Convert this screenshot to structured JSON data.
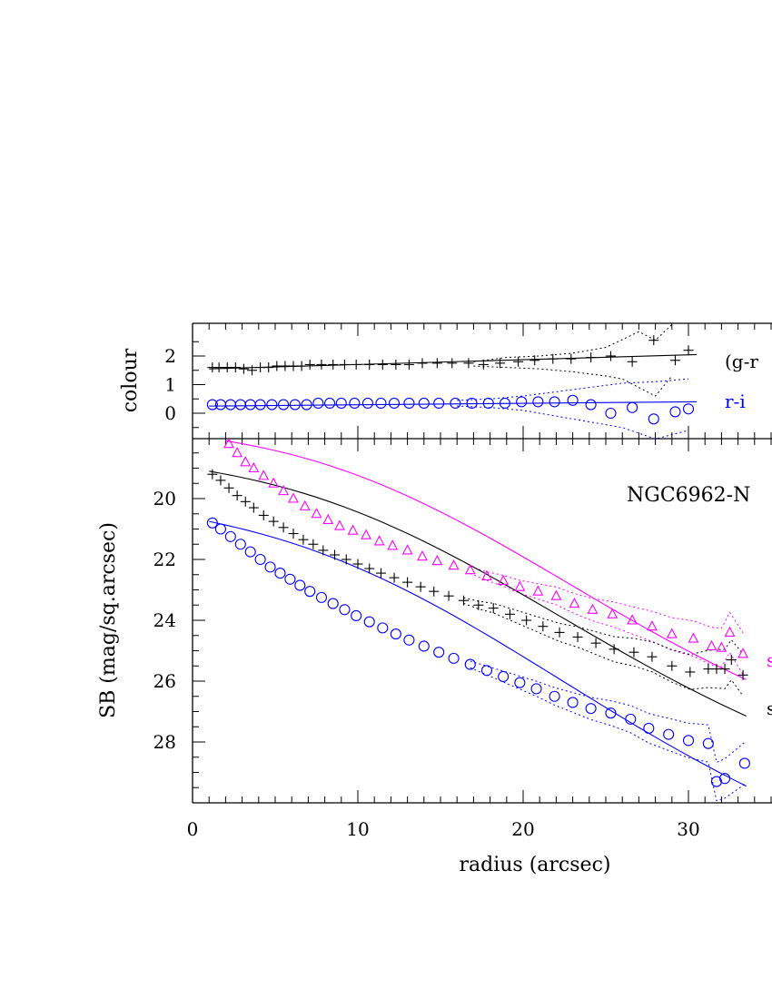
{
  "colors": {
    "black": "#000000",
    "blue": "#0000ff",
    "magenta": "#ff00ff"
  },
  "chart_data": [
    {
      "type": "scatter",
      "panel": "colour",
      "ylabel": "colour",
      "xlim": [
        0,
        35
      ],
      "ylim": [
        -0.8,
        3.0
      ],
      "y_ticks": [
        0,
        1,
        2
      ],
      "x_ticks": [
        0,
        10,
        20,
        30
      ],
      "labels": [
        "(g-r",
        "r-i"
      ],
      "series": [
        {
          "name": "(g-r",
          "color": "#000000",
          "marker": "plus",
          "x": [
            1.2,
            1.6,
            2.1,
            2.6,
            3.1,
            3.6,
            4.1,
            4.6,
            5.1,
            5.6,
            6.1,
            6.6,
            7.1,
            7.8,
            8.5,
            9.2,
            9.9,
            10.7,
            11.5,
            12.3,
            13.1,
            13.9,
            14.8,
            15.7,
            16.7,
            17.6,
            18.6,
            19.7,
            20.7,
            21.8,
            22.9,
            24.1,
            25.3,
            26.6,
            27.9,
            29.2,
            30.0
          ],
          "y": [
            1.6,
            1.6,
            1.6,
            1.6,
            1.55,
            1.5,
            1.6,
            1.6,
            1.65,
            1.65,
            1.65,
            1.65,
            1.7,
            1.7,
            1.7,
            1.7,
            1.7,
            1.7,
            1.7,
            1.7,
            1.7,
            1.75,
            1.75,
            1.75,
            1.75,
            1.7,
            1.75,
            1.8,
            1.85,
            1.9,
            1.9,
            1.95,
            2.0,
            1.8,
            2.55,
            1.85,
            2.2
          ],
          "fit_x": [
            1.0,
            30.5
          ],
          "fit_y": [
            1.55,
            2.05
          ],
          "err_upper": [
            [
              17,
              1.8
            ],
            [
              19,
              1.95
            ],
            [
              21,
              2.0
            ],
            [
              23,
              2.1
            ],
            [
              25,
              2.3
            ],
            [
              27,
              2.85
            ],
            [
              28,
              2.55
            ],
            [
              29,
              3.1
            ]
          ],
          "err_lower": [
            [
              17,
              1.65
            ],
            [
              19,
              1.6
            ],
            [
              21,
              1.55
            ],
            [
              23,
              1.45
            ],
            [
              25,
              1.3
            ],
            [
              26,
              1.2
            ],
            [
              28,
              0.6
            ],
            [
              29,
              1.3
            ]
          ]
        },
        {
          "name": "r-i",
          "color": "#0000ff",
          "marker": "circle",
          "x": [
            1.2,
            1.7,
            2.3,
            2.9,
            3.5,
            4.1,
            4.8,
            5.5,
            6.2,
            6.9,
            7.6,
            8.3,
            9.0,
            9.8,
            10.6,
            11.4,
            12.2,
            13.1,
            14.0,
            14.9,
            15.9,
            16.9,
            17.9,
            18.9,
            19.9,
            20.9,
            21.9,
            23.0,
            24.1,
            25.3,
            26.6,
            27.9,
            29.2,
            30.0
          ],
          "y": [
            0.3,
            0.3,
            0.3,
            0.3,
            0.3,
            0.3,
            0.3,
            0.3,
            0.3,
            0.3,
            0.35,
            0.35,
            0.35,
            0.35,
            0.35,
            0.35,
            0.35,
            0.35,
            0.35,
            0.35,
            0.35,
            0.35,
            0.35,
            0.35,
            0.4,
            0.4,
            0.4,
            0.45,
            0.3,
            0.0,
            0.2,
            -0.2,
            0.05,
            0.15
          ],
          "fit_x": [
            1.0,
            30.5
          ],
          "fit_y": [
            0.25,
            0.4
          ],
          "err_upper": [
            [
              16,
              0.45
            ],
            [
              18,
              0.5
            ],
            [
              20,
              0.6
            ],
            [
              22,
              0.75
            ],
            [
              24,
              0.9
            ],
            [
              26,
              1.05
            ],
            [
              28,
              1.1
            ],
            [
              30,
              1.2
            ]
          ],
          "err_lower": [
            [
              16,
              0.25
            ],
            [
              18,
              0.2
            ],
            [
              20,
              0.1
            ],
            [
              22,
              -0.1
            ],
            [
              24,
              -0.3
            ],
            [
              26,
              -0.5
            ],
            [
              28,
              -0.9
            ],
            [
              30,
              -0.6
            ]
          ]
        }
      ]
    },
    {
      "type": "scatter",
      "panel": "surface-brightness",
      "title": "NGC6962-N",
      "xlabel": "radius (arcsec)",
      "ylabel": "SB (mag/sq.arcsec)",
      "xlim": [
        0,
        35
      ],
      "ylim": [
        30.0,
        18.0
      ],
      "y_ticks": [
        20,
        22,
        24,
        26,
        28
      ],
      "x_ticks": [
        0,
        10,
        20,
        30
      ],
      "legend_fragments": [
        "s",
        "s"
      ],
      "series": [
        {
          "color": "#ff00ff",
          "marker": "triangle",
          "x": [
            2.2,
            2.7,
            3.2,
            3.7,
            4.3,
            4.9,
            5.5,
            6.1,
            6.8,
            7.5,
            8.2,
            8.9,
            9.7,
            10.5,
            11.3,
            12.1,
            13.0,
            13.9,
            14.8,
            15.8,
            16.8,
            17.8,
            18.8,
            19.8,
            20.9,
            22.0,
            23.1,
            24.2,
            25.4,
            26.6,
            27.8,
            29.0,
            30.3,
            31.4,
            32.0,
            32.5,
            33.3
          ],
          "y": [
            18.2,
            18.5,
            18.8,
            19.0,
            19.25,
            19.5,
            19.75,
            20.0,
            20.25,
            20.5,
            20.7,
            20.9,
            21.05,
            21.2,
            21.4,
            21.55,
            21.7,
            21.9,
            22.05,
            22.2,
            22.35,
            22.55,
            22.7,
            22.9,
            23.05,
            23.2,
            23.45,
            23.65,
            23.8,
            24.0,
            24.2,
            24.45,
            24.6,
            24.85,
            24.9,
            24.4,
            25.1
          ],
          "fit_x": [
            2.0,
            33.5
          ],
          "fit_y": [
            18.1,
            25.95
          ]
        },
        {
          "color": "#000000",
          "marker": "plus",
          "x": [
            1.2,
            1.7,
            2.2,
            2.7,
            3.2,
            3.7,
            4.3,
            4.9,
            5.5,
            6.1,
            6.7,
            7.3,
            7.9,
            8.6,
            9.3,
            10.0,
            10.7,
            11.4,
            12.2,
            13.0,
            13.8,
            14.6,
            15.5,
            16.4,
            17.3,
            18.2,
            19.2,
            20.2,
            21.2,
            22.2,
            23.3,
            24.4,
            25.5,
            26.7,
            27.8,
            29.0,
            30.1,
            31.2,
            31.7,
            32.2,
            32.6,
            33.3
          ],
          "y": [
            19.2,
            19.4,
            19.65,
            19.9,
            20.1,
            20.3,
            20.55,
            20.75,
            20.95,
            21.15,
            21.35,
            21.5,
            21.7,
            21.85,
            22.0,
            22.15,
            22.3,
            22.45,
            22.6,
            22.75,
            22.9,
            23.05,
            23.2,
            23.35,
            23.5,
            23.6,
            23.8,
            24.0,
            24.2,
            24.4,
            24.55,
            24.75,
            24.95,
            25.05,
            25.2,
            25.5,
            25.7,
            25.6,
            25.6,
            25.6,
            25.3,
            25.8
          ],
          "fit_x": [
            1.0,
            33.5
          ],
          "fit_y": [
            19.1,
            27.15
          ]
        },
        {
          "color": "#0000ff",
          "marker": "circle",
          "x": [
            1.2,
            1.7,
            2.3,
            2.9,
            3.5,
            4.1,
            4.7,
            5.3,
            5.9,
            6.5,
            7.1,
            7.8,
            8.5,
            9.2,
            9.9,
            10.7,
            11.5,
            12.3,
            13.1,
            14.0,
            14.9,
            15.8,
            16.8,
            17.8,
            18.8,
            19.8,
            20.8,
            21.9,
            23.0,
            24.1,
            25.3,
            26.5,
            27.6,
            28.8,
            30.0,
            31.2,
            31.7,
            32.2,
            33.4
          ],
          "y": [
            20.8,
            21.0,
            21.25,
            21.5,
            21.75,
            22.0,
            22.25,
            22.45,
            22.65,
            22.85,
            23.05,
            23.25,
            23.45,
            23.65,
            23.85,
            24.05,
            24.25,
            24.45,
            24.65,
            24.85,
            25.05,
            25.25,
            25.45,
            25.65,
            25.85,
            26.05,
            26.25,
            26.5,
            26.7,
            26.9,
            27.05,
            27.25,
            27.55,
            27.75,
            27.95,
            28.05,
            29.3,
            29.2,
            28.7
          ],
          "fit_x": [
            1.0,
            33.5
          ],
          "fit_y": [
            20.75,
            29.45
          ]
        }
      ]
    }
  ]
}
